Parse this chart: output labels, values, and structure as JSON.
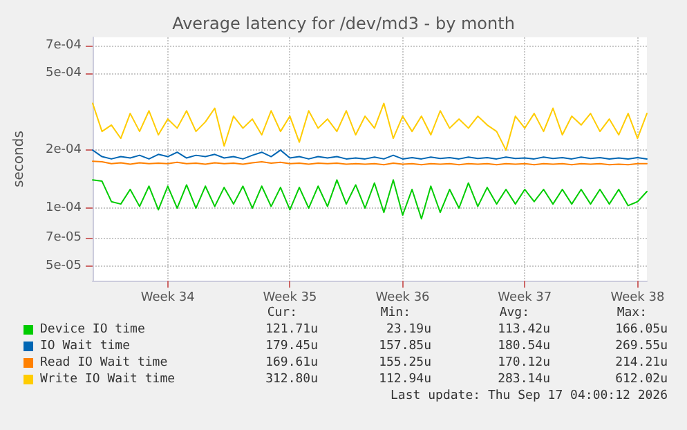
{
  "chart_data": {
    "type": "line",
    "title": "Average latency for /dev/md3 - by month",
    "ylabel": "seconds",
    "log": true,
    "grid": true,
    "legend": "bottom",
    "marker": "none",
    "line_style": "solid",
    "ylim": [
      4.2e-05,
      0.00077
    ],
    "yticks": [
      {
        "value": 5e-05,
        "label": "5e-05"
      },
      {
        "value": 7e-05,
        "label": "7e-05"
      },
      {
        "value": 0.0001,
        "label": "1e-04"
      },
      {
        "value": 0.0002,
        "label": "2e-04"
      },
      {
        "value": 0.0005,
        "label": "5e-04"
      },
      {
        "value": 0.0007,
        "label": "7e-04"
      }
    ],
    "categories": [
      null,
      null,
      null,
      null,
      null,
      null,
      null,
      null,
      "Week 34",
      null,
      null,
      null,
      null,
      null,
      null,
      null,
      null,
      null,
      null,
      null,
      null,
      "Week 35",
      null,
      null,
      null,
      null,
      null,
      null,
      null,
      null,
      null,
      null,
      null,
      "Week 36",
      null,
      null,
      null,
      null,
      null,
      null,
      null,
      null,
      null,
      null,
      null,
      null,
      "Week 37",
      null,
      null,
      null,
      null,
      null,
      null,
      null,
      null,
      null,
      null,
      null,
      "Week 38",
      null
    ],
    "series": [
      {
        "name": "Device IO time",
        "color": "#00cc00",
        "values": [
          0.00014,
          0.000138,
          0.000108,
          0.000105,
          0.000125,
          0.000102,
          0.00013,
          9.8e-05,
          0.00013,
          0.0001,
          0.000132,
          0.0001,
          0.00013,
          0.000102,
          0.000128,
          0.000105,
          0.00013,
          0.0001,
          0.00013,
          0.000102,
          0.000128,
          9.8e-05,
          0.000128,
          0.0001,
          0.00013,
          0.000102,
          0.00014,
          0.000105,
          0.000132,
          0.0001,
          0.000135,
          9.5e-05,
          0.00014,
          9.2e-05,
          0.000125,
          8.8e-05,
          0.00013,
          9.5e-05,
          0.000125,
          0.0001,
          0.000135,
          0.000102,
          0.000128,
          0.000105,
          0.000125,
          0.000105,
          0.000125,
          0.000108,
          0.000125,
          0.000105,
          0.000125,
          0.000105,
          0.000125,
          0.000105,
          0.000125,
          0.000105,
          0.000125,
          0.000103,
          0.000108,
          0.000122
        ]
      },
      {
        "name": "IO Wait time",
        "color": "#0066b3",
        "values": [
          0.0002,
          0.000185,
          0.00018,
          0.000185,
          0.000182,
          0.000188,
          0.00018,
          0.00019,
          0.000185,
          0.000195,
          0.000182,
          0.000188,
          0.000185,
          0.00019,
          0.000182,
          0.000185,
          0.00018,
          0.000188,
          0.000195,
          0.000185,
          0.0002,
          0.000182,
          0.000185,
          0.00018,
          0.000185,
          0.000182,
          0.000185,
          0.00018,
          0.000182,
          0.00018,
          0.000184,
          0.00018,
          0.000188,
          0.00018,
          0.000183,
          0.00018,
          0.000184,
          0.000181,
          0.000183,
          0.00018,
          0.000184,
          0.000181,
          0.000183,
          0.00018,
          0.000184,
          0.000181,
          0.000182,
          0.00018,
          0.000184,
          0.000181,
          0.000183,
          0.00018,
          0.000184,
          0.000181,
          0.000183,
          0.00018,
          0.000182,
          0.00018,
          0.000183,
          0.00018
        ]
      },
      {
        "name": "Read IO Wait time",
        "color": "#ff8000",
        "values": [
          0.000175,
          0.000174,
          0.00017,
          0.000172,
          0.000169,
          0.000172,
          0.00017,
          0.000171,
          0.00017,
          0.000173,
          0.00017,
          0.000171,
          0.000169,
          0.000172,
          0.00017,
          0.000171,
          0.000169,
          0.000172,
          0.000174,
          0.000171,
          0.000173,
          0.00017,
          0.000171,
          0.000169,
          0.000171,
          0.00017,
          0.000171,
          0.000169,
          0.00017,
          0.000169,
          0.00017,
          0.000168,
          0.000171,
          0.000169,
          0.00017,
          0.000168,
          0.00017,
          0.000169,
          0.00017,
          0.000168,
          0.00017,
          0.000169,
          0.00017,
          0.000168,
          0.00017,
          0.000169,
          0.00017,
          0.000168,
          0.00017,
          0.000169,
          0.00017,
          0.000168,
          0.00017,
          0.000169,
          0.00017,
          0.000168,
          0.000169,
          0.000168,
          0.00017,
          0.00017
        ]
      },
      {
        "name": "Write IO Wait time",
        "color": "#ffcc00",
        "values": [
          0.00035,
          0.00025,
          0.00027,
          0.00023,
          0.00031,
          0.00025,
          0.00032,
          0.00024,
          0.00029,
          0.00026,
          0.00032,
          0.00025,
          0.00028,
          0.00033,
          0.00021,
          0.0003,
          0.00026,
          0.00029,
          0.00024,
          0.00032,
          0.00025,
          0.0003,
          0.00022,
          0.00032,
          0.00026,
          0.00029,
          0.00025,
          0.00032,
          0.00024,
          0.0003,
          0.00026,
          0.00035,
          0.00023,
          0.0003,
          0.00025,
          0.0003,
          0.00024,
          0.00032,
          0.00026,
          0.00029,
          0.00026,
          0.0003,
          0.00027,
          0.00025,
          0.0002,
          0.0003,
          0.00026,
          0.00031,
          0.00025,
          0.00033,
          0.00024,
          0.0003,
          0.00027,
          0.00031,
          0.00025,
          0.00029,
          0.00024,
          0.00031,
          0.00023,
          0.00031
        ]
      }
    ],
    "annotations": [
      "Cur:",
      "Min:",
      "Avg:",
      "Max:",
      "121.71u",
      "23.19u",
      "113.42u",
      "166.05u",
      "179.45u",
      "157.85u",
      "180.54u",
      "269.55u",
      "169.61u",
      "155.25u",
      "170.12u",
      "214.21u",
      "312.80u",
      "112.94u",
      "283.14u",
      "612.02u",
      "Last update: Thu Sep 17 04:00:12 2026"
    ]
  }
}
